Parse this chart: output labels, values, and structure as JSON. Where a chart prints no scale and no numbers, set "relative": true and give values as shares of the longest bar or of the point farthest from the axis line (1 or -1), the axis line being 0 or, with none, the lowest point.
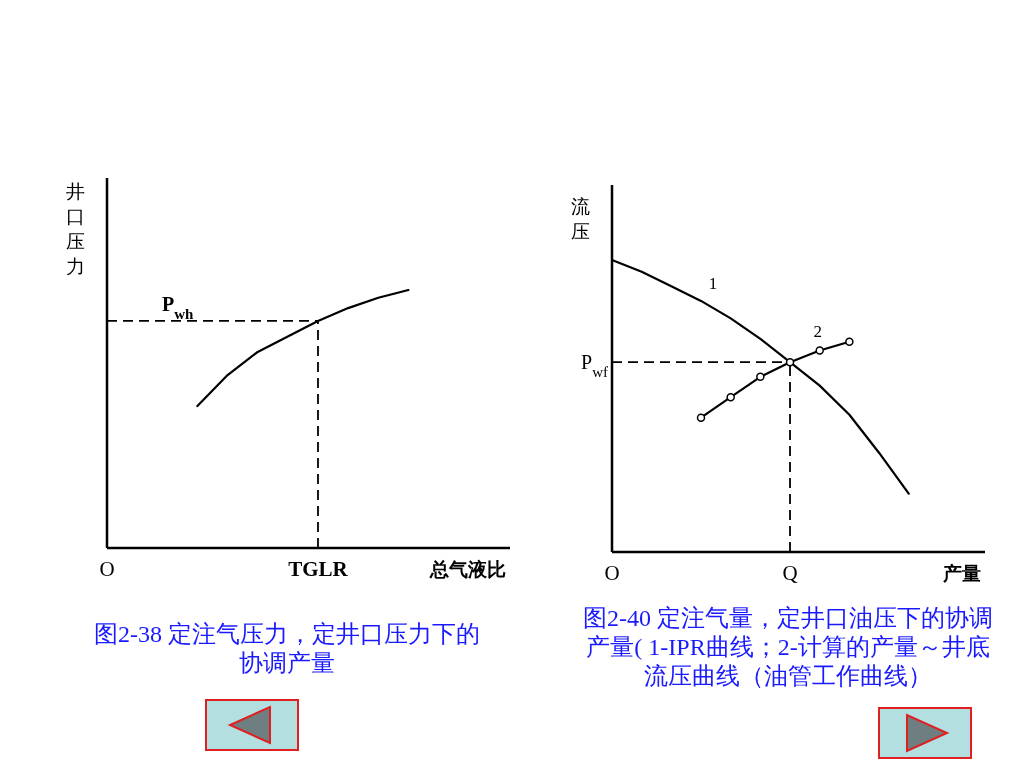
{
  "chart_data": [
    {
      "type": "line",
      "relative": true,
      "xlabel": "总气液比",
      "ylabel": "井口压力",
      "categories": [
        "O",
        null,
        null,
        null,
        null,
        null,
        null,
        "TGLR",
        null,
        null,
        null,
        null,
        null,
        null
      ],
      "series": [
        {
          "color": "#000000",
          "values": [
            null,
            null,
            null,
            0.55,
            0.67,
            0.76,
            0.82,
            0.88,
            0.93,
            0.97,
            1.0,
            null,
            null,
            null
          ]
        }
      ],
      "ref_lines": [
        {
          "axis": "y",
          "value": 0.88,
          "label": "P$_{wh}$",
          "line_style": "dashed"
        }
      ],
      "annotations": [
        "图2-38  定注气压力，定井口压力下的协调产量"
      ]
    },
    {
      "type": "line",
      "relative": true,
      "xlabel": "产量",
      "ylabel": "流压",
      "categories": [
        "O",
        null,
        null,
        null,
        null,
        null,
        "Q",
        null,
        null,
        null,
        null,
        null,
        null
      ],
      "series": [
        {
          "name": "1",
          "color": "#000000",
          "values": [
            1.0,
            0.96,
            0.91,
            0.86,
            0.8,
            0.73,
            0.65,
            0.57,
            0.47,
            0.34,
            0.2,
            null,
            null
          ]
        },
        {
          "name": "2",
          "color": "#000000",
          "marker": "circle",
          "values": [
            null,
            null,
            null,
            0.46,
            0.53,
            0.6,
            0.65,
            0.69,
            0.72,
            null,
            null,
            null,
            null
          ]
        }
      ],
      "ref_lines": [
        {
          "axis": "y",
          "value": 0.65,
          "label": "P$_{wf}$",
          "line_style": "dashed"
        }
      ],
      "annotations": [
        "图2-40  定注气量，定井口油压下的协调产量( 1-IPR曲线；2-计算的产量～井底流压曲线（油管工作曲线）"
      ]
    }
  ]
}
